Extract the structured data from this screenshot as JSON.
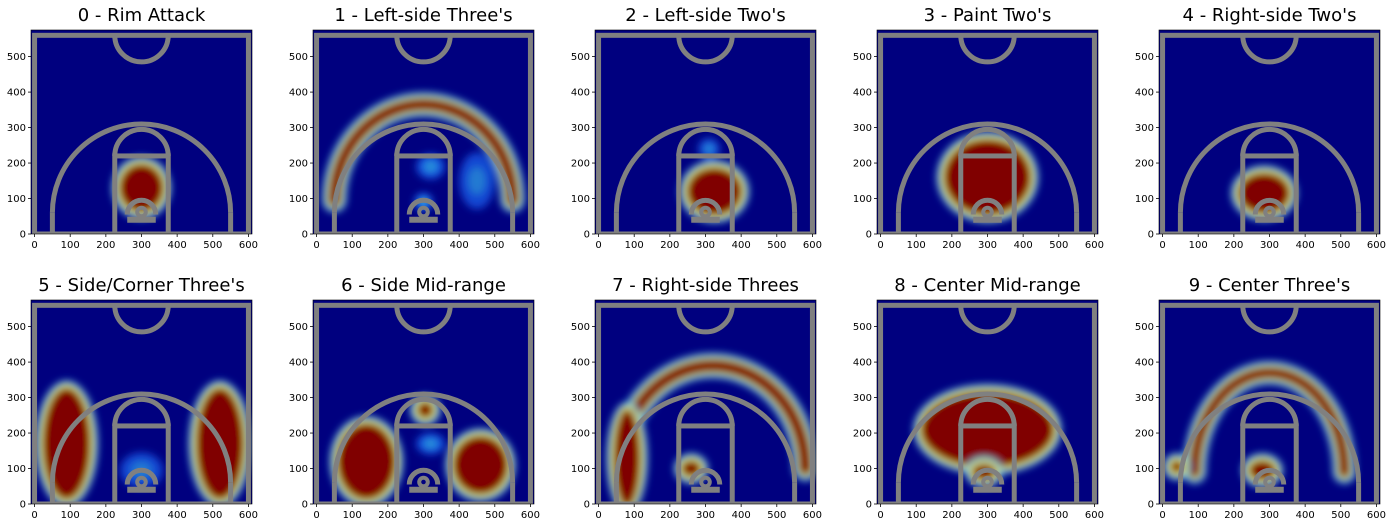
{
  "colors": {
    "court_lines": "#808080",
    "background": "#00007f",
    "colormap": "jet"
  },
  "axis_common": {
    "x_ticks": [
      0,
      100,
      200,
      300,
      400,
      500,
      600
    ],
    "y_ticks": [
      0,
      100,
      200,
      300,
      400,
      500
    ],
    "xlim": [
      -10,
      610
    ],
    "ylim": [
      0,
      575
    ]
  },
  "chart_data": [
    {
      "type": "heatmap",
      "title": "0 - Rim Attack",
      "blobs": [
        {
          "x": 300,
          "y": 130,
          "rx": 65,
          "ry": 70,
          "level": 1.0
        }
      ]
    },
    {
      "type": "heatmap",
      "title": "1 - Left-side Three's",
      "blobs": [
        {
          "x": 300,
          "y": 95,
          "rx": 250,
          "ry": 270,
          "level": 1.0,
          "band": 38
        },
        {
          "x": 320,
          "y": 190,
          "rx": 40,
          "ry": 35,
          "level": 0.45
        },
        {
          "x": 450,
          "y": 150,
          "rx": 50,
          "ry": 80,
          "level": 0.35
        },
        {
          "x": 300,
          "y": 90,
          "rx": 25,
          "ry": 25,
          "level": 0.6
        }
      ]
    },
    {
      "type": "heatmap",
      "title": "2 - Left-side Two's",
      "blobs": [
        {
          "x": 325,
          "y": 120,
          "rx": 80,
          "ry": 70,
          "level": 1.0
        },
        {
          "x": 310,
          "y": 240,
          "rx": 30,
          "ry": 30,
          "level": 0.4
        }
      ]
    },
    {
      "type": "heatmap",
      "title": "3 - Paint Two's",
      "blobs": [
        {
          "x": 300,
          "y": 160,
          "rx": 125,
          "ry": 110,
          "level": 1.0
        }
      ]
    },
    {
      "type": "heatmap",
      "title": "4 - Right-side Two's",
      "blobs": [
        {
          "x": 285,
          "y": 115,
          "rx": 75,
          "ry": 60,
          "level": 1.0
        }
      ]
    },
    {
      "type": "heatmap",
      "title": "5 - Side/Corner Three's",
      "blobs": [
        {
          "x": 90,
          "y": 170,
          "rx": 70,
          "ry": 160,
          "level": 1.0
        },
        {
          "x": 520,
          "y": 170,
          "rx": 70,
          "ry": 160,
          "level": 1.0
        },
        {
          "x": 300,
          "y": 95,
          "rx": 60,
          "ry": 50,
          "level": 0.35
        }
      ]
    },
    {
      "type": "heatmap",
      "title": "6 - Side Mid-range",
      "blobs": [
        {
          "x": 140,
          "y": 120,
          "rx": 85,
          "ry": 110,
          "level": 1.0
        },
        {
          "x": 460,
          "y": 110,
          "rx": 80,
          "ry": 85,
          "level": 1.0
        },
        {
          "x": 305,
          "y": 265,
          "rx": 25,
          "ry": 25,
          "level": 1.0
        },
        {
          "x": 320,
          "y": 170,
          "rx": 40,
          "ry": 30,
          "level": 0.45
        }
      ]
    },
    {
      "type": "heatmap",
      "title": "7 - Right-side Threes",
      "blobs": [
        {
          "x": 320,
          "y": 100,
          "rx": 260,
          "ry": 290,
          "level": 1.0,
          "band": 40
        },
        {
          "x": 80,
          "y": 130,
          "rx": 40,
          "ry": 140,
          "level": 1.0
        },
        {
          "x": 260,
          "y": 100,
          "rx": 30,
          "ry": 25,
          "level": 1.0
        }
      ]
    },
    {
      "type": "heatmap",
      "title": "8 - Center Mid-range",
      "blobs": [
        {
          "x": 300,
          "y": 210,
          "rx": 190,
          "ry": 110,
          "level": 1.0
        },
        {
          "x": 290,
          "y": 90,
          "rx": 35,
          "ry": 25,
          "level": 1.0
        }
      ]
    },
    {
      "type": "heatmap",
      "title": "9 - Center Three's",
      "blobs": [
        {
          "x": 300,
          "y": 90,
          "rx": 210,
          "ry": 280,
          "level": 1.0,
          "band": 35
        },
        {
          "x": 40,
          "y": 105,
          "rx": 20,
          "ry": 20,
          "level": 1.0
        },
        {
          "x": 280,
          "y": 95,
          "rx": 40,
          "ry": 30,
          "level": 1.0
        }
      ]
    }
  ]
}
